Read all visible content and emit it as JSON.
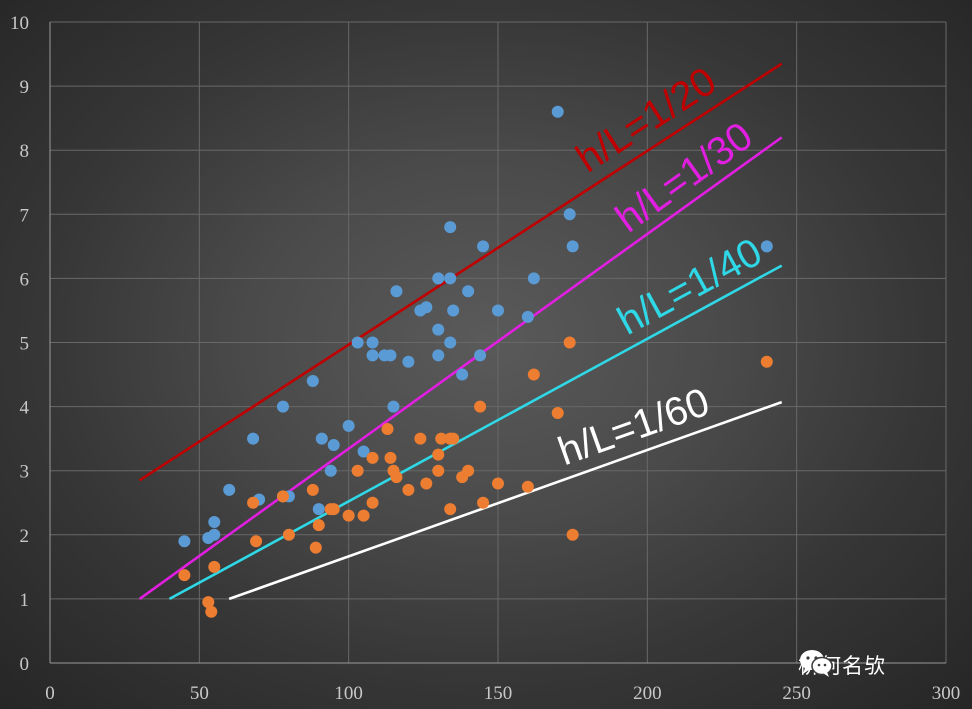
{
  "chart_data": {
    "type": "scatter",
    "xlim": [
      0,
      300
    ],
    "ylim": [
      0,
      10
    ],
    "x_ticks": [
      "0",
      "50",
      "100",
      "150",
      "200",
      "250",
      "300"
    ],
    "y_ticks": [
      "0",
      "1",
      "2",
      "3",
      "4",
      "5",
      "6",
      "7",
      "8",
      "9",
      "10"
    ],
    "grid": true,
    "series": [
      {
        "color": "#5b9bd5",
        "points": [
          [
            45,
            1.9
          ],
          [
            53,
            1.95
          ],
          [
            55,
            2.0
          ],
          [
            55,
            2.2
          ],
          [
            60,
            2.7
          ],
          [
            68,
            3.5
          ],
          [
            70,
            2.55
          ],
          [
            78,
            4.0
          ],
          [
            78,
            2.6
          ],
          [
            80,
            2.6
          ],
          [
            88,
            4.4
          ],
          [
            90,
            2.4
          ],
          [
            91,
            3.5
          ],
          [
            94,
            3.0
          ],
          [
            95,
            3.4
          ],
          [
            100,
            3.7
          ],
          [
            103,
            5.0
          ],
          [
            105,
            3.3
          ],
          [
            108,
            4.8
          ],
          [
            108,
            5.0
          ],
          [
            112,
            4.8
          ],
          [
            114,
            4.8
          ],
          [
            115,
            4.0
          ],
          [
            116,
            5.8
          ],
          [
            120,
            4.7
          ],
          [
            124,
            5.5
          ],
          [
            126,
            5.55
          ],
          [
            130,
            4.8
          ],
          [
            130,
            5.2
          ],
          [
            130,
            6.0
          ],
          [
            134,
            5.0
          ],
          [
            134,
            6.0
          ],
          [
            134,
            6.8
          ],
          [
            135,
            5.5
          ],
          [
            138,
            4.5
          ],
          [
            140,
            5.8
          ],
          [
            144,
            4.8
          ],
          [
            145,
            6.5
          ],
          [
            150,
            5.5
          ],
          [
            160,
            5.4
          ],
          [
            162,
            6.0
          ],
          [
            170,
            8.6
          ],
          [
            174,
            7.0
          ],
          [
            175,
            6.5
          ],
          [
            240,
            6.5
          ]
        ]
      },
      {
        "color": "#ed7d31",
        "points": [
          [
            45,
            1.37
          ],
          [
            53,
            0.95
          ],
          [
            54,
            0.8
          ],
          [
            55,
            1.5
          ],
          [
            68,
            2.5
          ],
          [
            69,
            1.9
          ],
          [
            78,
            2.6
          ],
          [
            80,
            2.0
          ],
          [
            88,
            2.7
          ],
          [
            89,
            1.8
          ],
          [
            90,
            2.15
          ],
          [
            94,
            2.4
          ],
          [
            95,
            2.4
          ],
          [
            100,
            2.3
          ],
          [
            103,
            3.0
          ],
          [
            105,
            2.3
          ],
          [
            108,
            3.2
          ],
          [
            108,
            2.5
          ],
          [
            113,
            3.65
          ],
          [
            114,
            3.2
          ],
          [
            115,
            3.0
          ],
          [
            116,
            2.9
          ],
          [
            120,
            2.7
          ],
          [
            124,
            3.5
          ],
          [
            126,
            2.8
          ],
          [
            130,
            3.0
          ],
          [
            130,
            3.25
          ],
          [
            131,
            3.5
          ],
          [
            134,
            2.4
          ],
          [
            134,
            3.5
          ],
          [
            135,
            3.5
          ],
          [
            138,
            2.9
          ],
          [
            140,
            3.0
          ],
          [
            144,
            4.0
          ],
          [
            145,
            2.5
          ],
          [
            150,
            2.8
          ],
          [
            160,
            2.75
          ],
          [
            162,
            4.5
          ],
          [
            170,
            3.9
          ],
          [
            174,
            5.0
          ],
          [
            175,
            2.0
          ],
          [
            240,
            4.7
          ]
        ]
      }
    ],
    "reference_lines": [
      {
        "label": "h/L=1/20",
        "color": "#c00000",
        "x": [
          30,
          245
        ],
        "y": [
          2.85,
          9.35
        ]
      },
      {
        "label": "h/L=1/30",
        "color": "#e11ee1",
        "x": [
          30,
          245
        ],
        "y": [
          1.0,
          8.2
        ]
      },
      {
        "label": "h/L=1/40",
        "color": "#2fd8e6",
        "x": [
          40,
          245
        ],
        "y": [
          1.0,
          6.2
        ]
      },
      {
        "label": "h/L=1/60",
        "color": "#ffffff",
        "x": [
          60,
          245
        ],
        "y": [
          1.0,
          4.07
        ]
      }
    ]
  },
  "watermark": {
    "icon": "wechat-icon",
    "text": "桥何名欤"
  }
}
